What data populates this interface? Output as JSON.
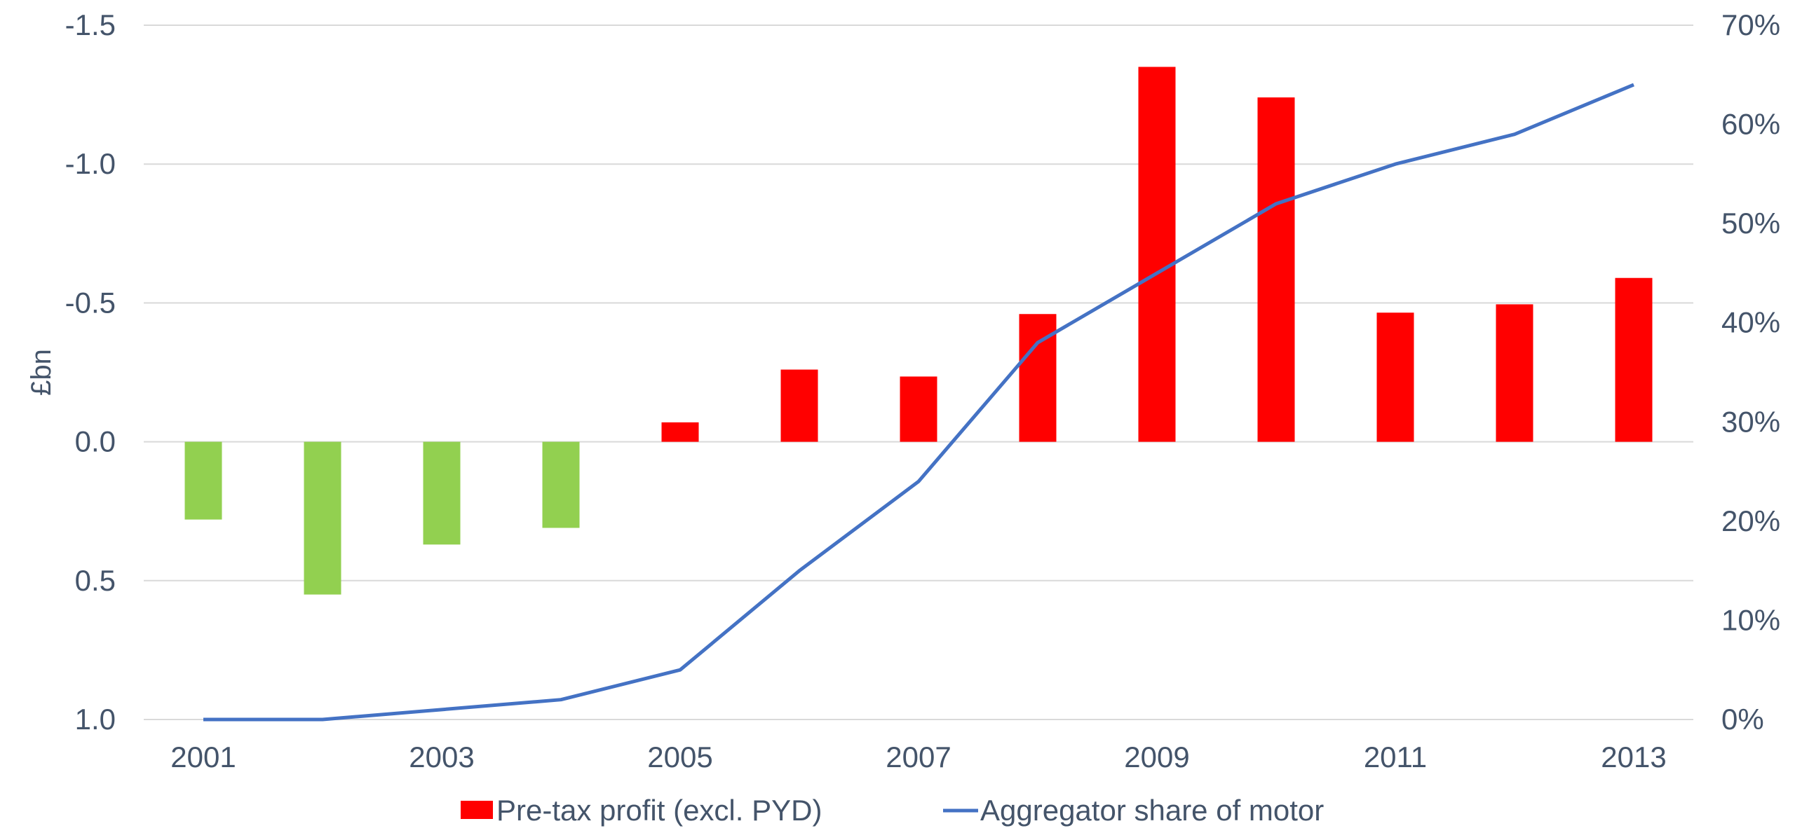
{
  "chart_data": {
    "type": "bar",
    "ylabel": "£bn",
    "x_ticks": [
      "2001",
      "2003",
      "2005",
      "2007",
      "2009",
      "2011",
      "2013"
    ],
    "categories": [
      "2001",
      "2002",
      "2003",
      "2004",
      "2005",
      "2006",
      "2007",
      "2008",
      "2009",
      "2010",
      "2011",
      "2012",
      "2013"
    ],
    "y_left": {
      "ticks": [
        "-1.5",
        "-1.0",
        "-0.5",
        "0.0",
        "0.5",
        "1.0"
      ],
      "range": [
        -1.5,
        1.0
      ],
      "inverted": true
    },
    "y_right": {
      "ticks": [
        "70%",
        "60%",
        "50%",
        "40%",
        "30%",
        "20%",
        "10%",
        "0%"
      ],
      "range": [
        0,
        70
      ]
    },
    "series": [
      {
        "name": "Pre-tax profit (excl. PYD)",
        "type": "bar",
        "axis": "left",
        "values": [
          0.28,
          0.55,
          0.37,
          0.31,
          -0.07,
          -0.26,
          -0.235,
          -0.46,
          -1.35,
          -1.24,
          -0.465,
          -0.495,
          -0.59
        ],
        "colors": [
          "#92d050",
          "#92d050",
          "#92d050",
          "#92d050",
          "#ff0000",
          "#ff0000",
          "#ff0000",
          "#ff0000",
          "#ff0000",
          "#ff0000",
          "#ff0000",
          "#ff0000",
          "#ff0000"
        ],
        "legend_color": "#ff0000"
      },
      {
        "name": "Aggregator share of motor",
        "type": "line",
        "axis": "right",
        "values": [
          0,
          0,
          1,
          2,
          5,
          15,
          24,
          38,
          45,
          52,
          56,
          59,
          64
        ],
        "color": "#4472c4"
      }
    ],
    "grid": true,
    "legend_position": "bottom"
  }
}
